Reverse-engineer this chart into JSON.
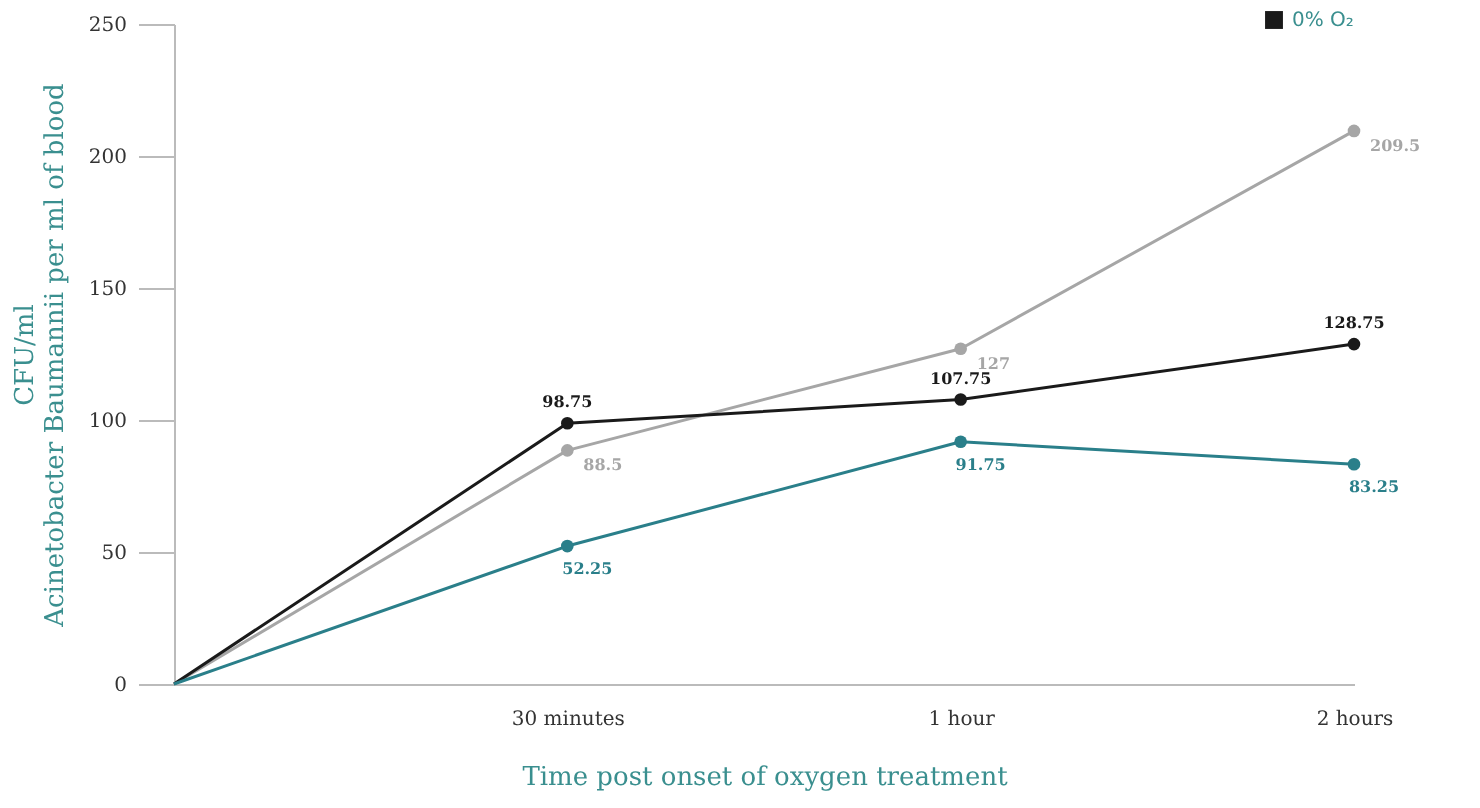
{
  "chart_data": {
    "type": "line",
    "xlabel": "Time post onset of oxygen treatment",
    "ylabel": "CFU/ml\nAcinetobacter Baumannii per ml of blood",
    "categories": [
      null,
      "30 minutes",
      "1 hour",
      "2 hours"
    ],
    "ylim": [
      0,
      250
    ],
    "yticks": [
      0,
      50,
      100,
      150,
      200,
      250
    ],
    "grid": false,
    "marker": "circle",
    "line_style": "solid",
    "legend": "top right",
    "series": [
      {
        "color": "#a6a6a6",
        "values": [
          0,
          88.5,
          127,
          209.5
        ],
        "value_labels": [
          null,
          "88.5",
          "127",
          "209.5"
        ]
      },
      {
        "name": "0% O₂",
        "color": "#1a1a1a",
        "values": [
          0,
          98.75,
          107.75,
          128.75
        ],
        "value_labels": [
          null,
          "98.75",
          "107.75",
          "128.75"
        ]
      },
      {
        "color": "#2a7f8a",
        "values": [
          0,
          52.25,
          91.75,
          83.25
        ],
        "value_labels": [
          null,
          "52.25",
          "91.75",
          "83.25"
        ]
      }
    ]
  }
}
